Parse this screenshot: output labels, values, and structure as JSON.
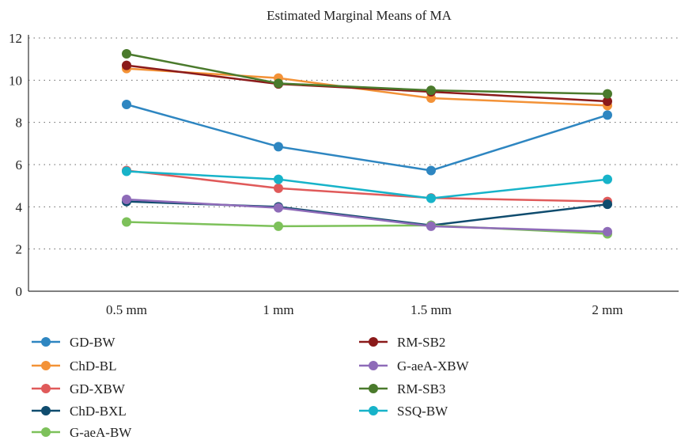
{
  "chart_data": {
    "type": "line",
    "title": "Estimated Marginal Means of MA",
    "xlabel": "",
    "ylabel": "",
    "categories": [
      "0.5 mm",
      "1 mm",
      "1.5 mm",
      "2 mm"
    ],
    "ylim": [
      0,
      12
    ],
    "yticks": [
      "0",
      "2",
      "4",
      "6",
      "8",
      "10",
      "12"
    ],
    "grid": "horizontal-dotted",
    "legend_position": "bottom",
    "series": [
      {
        "name": "GD-BW",
        "color": "#2e86c1",
        "values": [
          8.85,
          6.85,
          5.72,
          8.35
        ]
      },
      {
        "name": "ChD-BL",
        "color": "#f39237",
        "values": [
          10.55,
          10.1,
          9.15,
          8.8
        ]
      },
      {
        "name": "GD-XBW",
        "color": "#e05a5a",
        "values": [
          5.72,
          4.88,
          4.42,
          4.25
        ]
      },
      {
        "name": "ChD-BXL",
        "color": "#0f4c6e",
        "values": [
          4.25,
          4.0,
          3.12,
          4.12
        ]
      },
      {
        "name": "G-aeA-BW",
        "color": "#7dc15a",
        "values": [
          3.28,
          3.08,
          3.12,
          2.72
        ]
      },
      {
        "name": "RM-SB2",
        "color": "#8b1a1a",
        "values": [
          10.7,
          9.82,
          9.45,
          9.0
        ]
      },
      {
        "name": "G-aeA-XBW",
        "color": "#8e6bb8",
        "values": [
          4.35,
          3.95,
          3.08,
          2.82
        ]
      },
      {
        "name": "RM-SB3",
        "color": "#4a7a2c",
        "values": [
          11.25,
          9.85,
          9.52,
          9.35
        ]
      },
      {
        "name": "SSQ-BW",
        "color": "#17b3c9",
        "values": [
          5.68,
          5.3,
          4.4,
          5.3
        ]
      }
    ]
  }
}
